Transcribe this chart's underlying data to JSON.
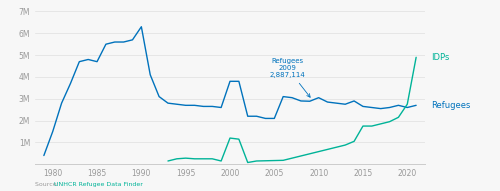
{
  "annotation_label": "Refugees\n2009\n2,887,114",
  "annotation_year": 2009,
  "annotation_value": 2887114,
  "refugee_color": "#0072BC",
  "idp_color": "#00B398",
  "label_idps": "IDPs",
  "label_refugees": "Refugees",
  "ylim": [
    0,
    7000000
  ],
  "yticks": [
    0,
    1000000,
    2000000,
    3000000,
    4000000,
    5000000,
    6000000,
    7000000
  ],
  "ytick_labels": [
    "",
    "1M",
    "2M",
    "3M",
    "4M",
    "5M",
    "6M",
    "7M"
  ],
  "xlim": [
    1978,
    2022
  ],
  "xticks": [
    1980,
    1985,
    1990,
    1995,
    2000,
    2005,
    2010,
    2015,
    2020
  ],
  "background_color": "#f7f7f7",
  "grid_color": "#e0e0e0",
  "tick_color": "#999999",
  "source_label": "Source: ",
  "source_link": "UNHCR Refugee Data Finder",
  "refugees_years": [
    1979,
    1980,
    1981,
    1982,
    1983,
    1984,
    1985,
    1986,
    1987,
    1988,
    1989,
    1990,
    1991,
    1992,
    1993,
    1994,
    1995,
    1996,
    1997,
    1998,
    1999,
    2000,
    2001,
    2002,
    2003,
    2004,
    2005,
    2006,
    2007,
    2008,
    2009,
    2010,
    2011,
    2012,
    2013,
    2014,
    2015,
    2016,
    2017,
    2018,
    2019,
    2020,
    2021
  ],
  "refugees_values": [
    400000,
    1500000,
    2800000,
    3700000,
    4700000,
    4800000,
    4700000,
    5500000,
    5600000,
    5600000,
    5700000,
    6300000,
    4100000,
    3100000,
    2800000,
    2750000,
    2700000,
    2700000,
    2650000,
    2650000,
    2600000,
    3800000,
    3800000,
    2200000,
    2200000,
    2100000,
    2100000,
    3100000,
    3050000,
    2900000,
    2887114,
    3050000,
    2850000,
    2800000,
    2750000,
    2900000,
    2650000,
    2600000,
    2550000,
    2600000,
    2700000,
    2600000,
    2700000
  ],
  "idps_years": [
    1993,
    1994,
    1995,
    1996,
    1997,
    1998,
    1999,
    2000,
    2001,
    2002,
    2003,
    2004,
    2005,
    2006,
    2007,
    2008,
    2009,
    2010,
    2011,
    2012,
    2013,
    2014,
    2015,
    2016,
    2017,
    2018,
    2019,
    2020,
    2021
  ],
  "idps_values": [
    150000,
    250000,
    280000,
    250000,
    250000,
    250000,
    150000,
    1200000,
    1150000,
    80000,
    150000,
    160000,
    170000,
    180000,
    280000,
    380000,
    480000,
    580000,
    680000,
    780000,
    880000,
    1050000,
    1750000,
    1750000,
    1850000,
    1950000,
    2150000,
    2750000,
    4900000
  ]
}
